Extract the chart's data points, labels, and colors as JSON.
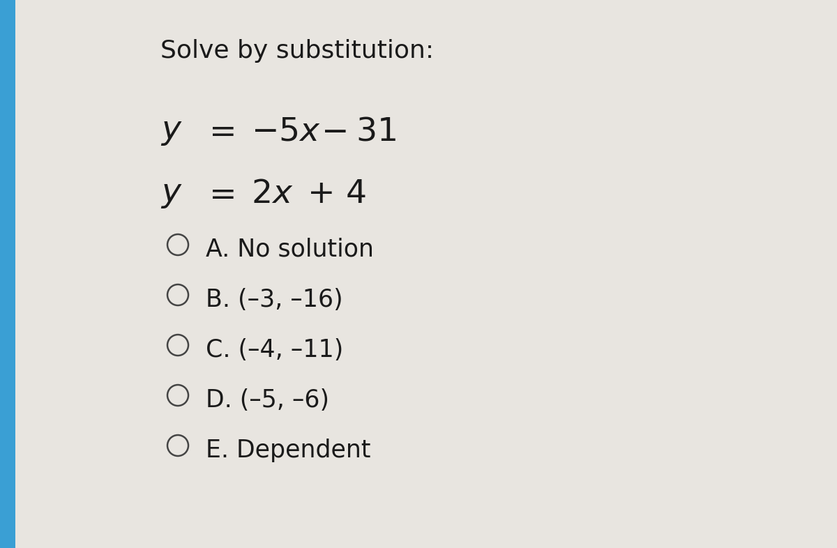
{
  "title": "Solve by substitution:",
  "bg_color": "#e8e5e0",
  "left_strip_color": "#3a9fd4",
  "text_color": "#1a1a1a",
  "circle_color": "#444444",
  "title_fontsize": 26,
  "eq_fontsize": 30,
  "option_fontsize": 25,
  "options": [
    "A. No solution",
    "B. (–3, –16)",
    "C. (–4, –11)",
    "D. (–5, –6)",
    "E. Dependent"
  ]
}
